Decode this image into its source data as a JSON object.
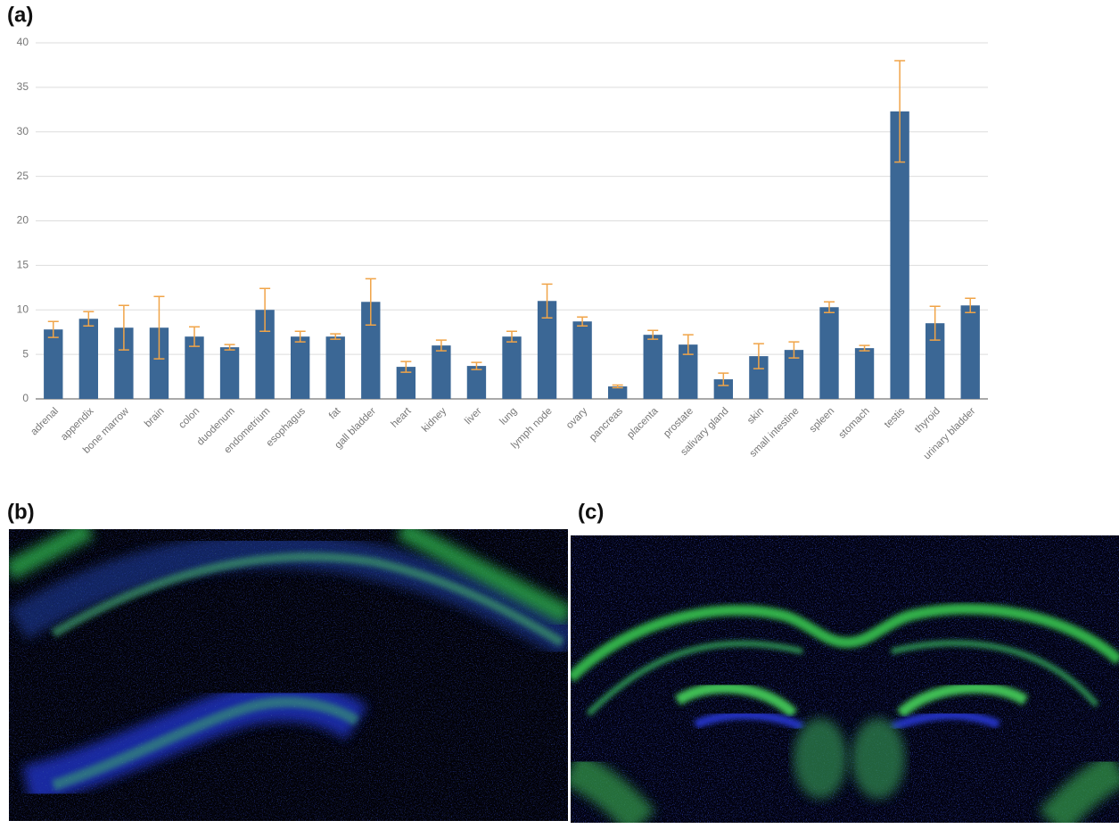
{
  "panel_labels": [
    "(a)",
    "(b)",
    "(c)"
  ],
  "chart_data": {
    "type": "bar",
    "categories": [
      "adrenal",
      "appendix",
      "bone marrow",
      "brain",
      "colon",
      "duodenum",
      "endometrium",
      "esophagus",
      "fat",
      "gall bladder",
      "heart",
      "kidney",
      "liver",
      "lung",
      "lymph node",
      "ovary",
      "pancreas",
      "placenta",
      "prostate",
      "salivary gland",
      "skin",
      "small intestine",
      "spleen",
      "stomach",
      "testis",
      "thyroid",
      "urinary bladder"
    ],
    "values": [
      7.8,
      9.0,
      8.0,
      8.0,
      7.0,
      5.8,
      10.0,
      7.0,
      7.0,
      10.9,
      3.6,
      6.0,
      3.7,
      7.0,
      11.0,
      8.7,
      1.4,
      7.2,
      6.1,
      2.2,
      4.8,
      5.5,
      10.3,
      5.7,
      32.3,
      8.5,
      10.5
    ],
    "errors": [
      0.9,
      0.8,
      2.5,
      3.5,
      1.1,
      0.3,
      2.4,
      0.6,
      0.3,
      2.6,
      0.6,
      0.6,
      0.4,
      0.6,
      1.9,
      0.5,
      0.15,
      0.5,
      1.1,
      0.7,
      1.4,
      0.9,
      0.6,
      0.3,
      5.7,
      1.9,
      0.8
    ],
    "color": "#3b6795",
    "error_color": "#f0a448",
    "ylim": [
      0,
      40
    ],
    "yticks": [
      0,
      5,
      10,
      15,
      20,
      25,
      30,
      35,
      40
    ],
    "grid": true
  }
}
